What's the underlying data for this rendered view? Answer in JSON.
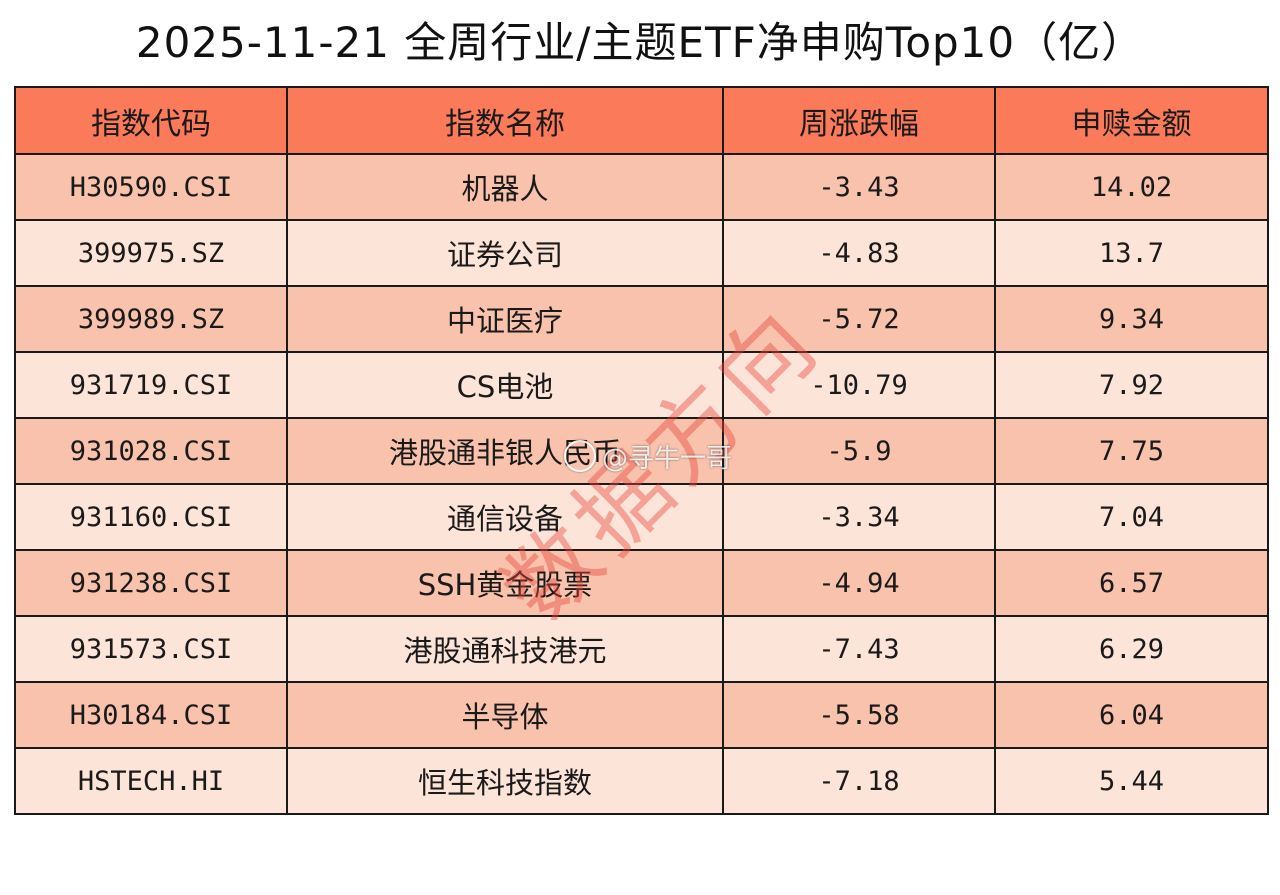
{
  "title": "2025-11-21 全周行业/主题ETF净申购Top10（亿）",
  "chart_data": {
    "type": "table",
    "title": "2025-11-21 全周行业/主题ETF净申购Top10（亿）",
    "columns": [
      "指数代码",
      "指数名称",
      "周涨跌幅",
      "申赎金额"
    ],
    "rows": [
      [
        "H30590.CSI",
        "机器人",
        "-3.43",
        "14.02"
      ],
      [
        "399975.SZ",
        "证券公司",
        "-4.83",
        "13.7"
      ],
      [
        "399989.SZ",
        "中证医疗",
        "-5.72",
        "9.34"
      ],
      [
        "931719.CSI",
        "CS电池",
        "-10.79",
        "7.92"
      ],
      [
        "931028.CSI",
        "港股通非银人民币",
        "-5.9",
        "7.75"
      ],
      [
        "931160.CSI",
        "通信设备",
        "-3.34",
        "7.04"
      ],
      [
        "931238.CSI",
        "SSH黄金股票",
        "-4.94",
        "6.57"
      ],
      [
        "931573.CSI",
        "港股通科技港元",
        "-7.43",
        "6.29"
      ],
      [
        "H30184.CSI",
        "半导体",
        "-5.58",
        "6.04"
      ],
      [
        "HSTECH.HI",
        "恒生科技指数",
        "-7.18",
        "5.44"
      ]
    ]
  },
  "watermarks": {
    "stamp_text": "数据方向",
    "weibo_handle": "@寻牛一哥"
  },
  "colors": {
    "header_bg": "#fa7a5a",
    "row_odd_bg": "#f9c2ad",
    "row_even_bg": "#fde4d9",
    "watermark": "#e8443a"
  }
}
